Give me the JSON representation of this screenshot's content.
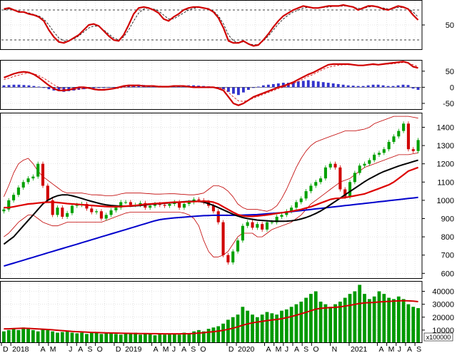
{
  "chart_data": [
    {
      "type": "line",
      "panel": "oscillator",
      "ylim": [
        0,
        100
      ],
      "yticks": [
        "50"
      ],
      "yticks_values": [
        50
      ],
      "reference_levels": [
        80,
        20
      ],
      "series": [
        {
          "values": [
            82,
            84,
            80,
            76,
            76,
            72,
            70,
            66,
            58,
            40,
            26,
            16,
            14,
            18,
            24,
            30,
            40,
            50,
            52,
            48,
            38,
            28,
            20,
            18,
            30,
            50,
            72,
            84,
            86,
            84,
            80,
            74,
            62,
            58,
            66,
            72,
            80,
            84,
            86,
            86,
            84,
            82,
            76,
            64,
            44,
            18,
            14,
            14,
            18,
            12,
            8,
            10,
            20,
            32,
            46,
            58,
            68,
            74,
            80,
            84,
            88,
            86,
            84,
            84,
            86,
            88,
            88,
            88,
            90,
            88,
            86,
            80,
            84,
            88,
            88,
            86,
            82,
            80,
            84,
            88,
            86,
            82,
            70,
            60
          ]
        },
        {
          "values": [
            80,
            82,
            80,
            78,
            76,
            74,
            71,
            68,
            62,
            50,
            36,
            24,
            18,
            18,
            22,
            28,
            36,
            44,
            48,
            47,
            40,
            32,
            24,
            20,
            26,
            40,
            58,
            74,
            82,
            84,
            82,
            78,
            70,
            62,
            62,
            68,
            74,
            80,
            83,
            85,
            84,
            82,
            78,
            68,
            52,
            30,
            18,
            15,
            16,
            13,
            10,
            11,
            18,
            28,
            40,
            52,
            62,
            70,
            76,
            80,
            84,
            85,
            84,
            84,
            85,
            86,
            87,
            87,
            88,
            88,
            86,
            83,
            83,
            86,
            87,
            86,
            84,
            82,
            83,
            85,
            85,
            83,
            76,
            66
          ]
        }
      ]
    },
    {
      "type": "bar",
      "panel": "macd",
      "ylim": [
        -70,
        85
      ],
      "yticks": [
        "50",
        "0",
        "-50"
      ],
      "yticks_values": [
        50,
        0,
        -50
      ],
      "histogram": [
        6,
        7,
        8,
        8,
        7,
        6,
        4,
        2,
        -2,
        -6,
        -10,
        -12,
        -14,
        -12,
        -10,
        -8,
        -6,
        -4,
        -3,
        -2,
        -2,
        -1,
        0,
        2,
        4,
        6,
        7,
        8,
        7,
        6,
        5,
        4,
        4,
        3,
        3,
        4,
        5,
        6,
        6,
        5,
        4,
        3,
        2,
        -1,
        -6,
        -14,
        -20,
        -24,
        -16,
        -8,
        -2,
        2,
        6,
        8,
        10,
        12,
        14,
        14,
        16,
        18,
        20,
        22,
        20,
        18,
        16,
        14,
        12,
        10,
        8,
        6,
        5,
        4,
        4,
        6,
        8,
        8,
        6,
        4,
        4,
        6,
        8,
        7,
        -4,
        -8
      ],
      "series": [
        {
          "values": [
            30,
            36,
            42,
            46,
            48,
            46,
            40,
            30,
            18,
            6,
            -4,
            -10,
            -10,
            -8,
            -4,
            0,
            0,
            -2,
            -6,
            -8,
            -8,
            -6,
            -4,
            0,
            4,
            6,
            6,
            6,
            4,
            4,
            4,
            2,
            2,
            2,
            4,
            4,
            4,
            2,
            0,
            0,
            0,
            0,
            0,
            -4,
            -10,
            -30,
            -50,
            -56,
            -50,
            -40,
            -30,
            -24,
            -18,
            -12,
            -6,
            0,
            4,
            10,
            16,
            24,
            32,
            40,
            46,
            54,
            62,
            70,
            72,
            72,
            72,
            72,
            70,
            68,
            68,
            70,
            72,
            70,
            72,
            74,
            76,
            78,
            80,
            76,
            64,
            60
          ]
        },
        {
          "values": [
            24,
            28,
            34,
            38,
            42,
            44,
            42,
            36,
            28,
            18,
            8,
            0,
            -6,
            -8,
            -8,
            -6,
            -4,
            -4,
            -4,
            -6,
            -6,
            -6,
            -5,
            -3,
            0,
            2,
            3,
            4,
            4,
            4,
            4,
            4,
            3,
            3,
            3,
            3,
            3,
            3,
            2,
            2,
            1,
            1,
            1,
            -1,
            -5,
            -16,
            -30,
            -42,
            -44,
            -40,
            -34,
            -28,
            -22,
            -16,
            -10,
            -4,
            0,
            6,
            12,
            18,
            26,
            34,
            40,
            48,
            56,
            62,
            66,
            68,
            70,
            70,
            70,
            68,
            68,
            69,
            70,
            70,
            71,
            72,
            73,
            75,
            77,
            76,
            70,
            64
          ]
        }
      ]
    },
    {
      "type": "candlestick",
      "panel": "price",
      "ylim": [
        570,
        1480
      ],
      "yticks": [
        "1400",
        "1300",
        "1200",
        "1100",
        "1000",
        "900",
        "800",
        "700",
        "600"
      ],
      "yticks_values": [
        1400,
        1300,
        1200,
        1100,
        1000,
        900,
        800,
        700,
        600
      ],
      "close": [
        950,
        1000,
        1030,
        1070,
        1100,
        1120,
        1130,
        1200,
        1080,
        1000,
        920,
        960,
        910,
        930,
        970,
        975,
        980,
        955,
        935,
        940,
        900,
        920,
        945,
        960,
        990,
        990,
        975,
        975,
        985,
        960,
        970,
        980,
        975,
        970,
        980,
        990,
        960,
        980,
        990,
        1005,
        1000,
        990,
        970,
        940,
        880,
        700,
        660,
        720,
        780,
        860,
        880,
        850,
        870,
        840,
        880,
        880,
        910,
        920,
        940,
        960,
        990,
        1010,
        1050,
        1080,
        1100,
        1120,
        1180,
        1200,
        1180,
        1060,
        1020,
        1100,
        1150,
        1190,
        1200,
        1220,
        1250,
        1260,
        1280,
        1320,
        1350,
        1380,
        1420,
        1280,
        1270,
        1330
      ],
      "ma_red": [
        960,
        960,
        965,
        970,
        975,
        980,
        982,
        985,
        988,
        990,
        990,
        988,
        985,
        982,
        980,
        978,
        976,
        974,
        972,
        970,
        968,
        966,
        965,
        965,
        966,
        968,
        970,
        972,
        975,
        978,
        980,
        982,
        984,
        986,
        988,
        990,
        990,
        991,
        992,
        993,
        994,
        995,
        994,
        990,
        980,
        965,
        950,
        935,
        922,
        915,
        912,
        912,
        914,
        917,
        920,
        924,
        928,
        932,
        936,
        940,
        945,
        950,
        958,
        965,
        975,
        985,
        995,
        1005,
        1010,
        1012,
        1015,
        1020,
        1025,
        1030,
        1035,
        1045,
        1055,
        1065,
        1075,
        1085,
        1100,
        1120,
        1140,
        1160,
        1170,
        1180
      ],
      "ma_black": [
        760,
        780,
        800,
        830,
        860,
        890,
        920,
        950,
        980,
        1000,
        1015,
        1025,
        1030,
        1030,
        1025,
        1018,
        1010,
        1002,
        994,
        987,
        980,
        975,
        972,
        970,
        968,
        968,
        968,
        970,
        972,
        975,
        978,
        980,
        982,
        984,
        986,
        988,
        990,
        992,
        994,
        995,
        994,
        990,
        982,
        972,
        960,
        948,
        936,
        924,
        914,
        906,
        900,
        896,
        892,
        890,
        888,
        886,
        885,
        885,
        886,
        888,
        892,
        898,
        906,
        916,
        928,
        942,
        958,
        976,
        994,
        1012,
        1030,
        1048,
        1066,
        1084,
        1102,
        1118,
        1132,
        1146,
        1158,
        1168,
        1178,
        1188,
        1196,
        1204,
        1212,
        1220
      ],
      "ma_blue": [
        640,
        648,
        656,
        664,
        672,
        680,
        688,
        696,
        704,
        712,
        720,
        728,
        736,
        744,
        752,
        760,
        768,
        776,
        784,
        792,
        800,
        808,
        816,
        824,
        832,
        840,
        848,
        856,
        864,
        872,
        880,
        888,
        894,
        898,
        901,
        904,
        906,
        908,
        910,
        912,
        914,
        916,
        917,
        918,
        918,
        918,
        918,
        918,
        918,
        919,
        920,
        921,
        922,
        924,
        926,
        928,
        930,
        932,
        935,
        938,
        941,
        944,
        947,
        950,
        953,
        956,
        959,
        962,
        965,
        968,
        971,
        974,
        977,
        980,
        983,
        986,
        989,
        992,
        995,
        998,
        1001,
        1004,
        1007,
        1010,
        1013,
        1016
      ],
      "bb_upper": [
        1020,
        1080,
        1150,
        1200,
        1220,
        1230,
        1200,
        1160,
        1130,
        1110,
        1090,
        1070,
        1050,
        1040,
        1040,
        1040,
        1040,
        1035,
        1030,
        1030,
        1028,
        1025,
        1025,
        1028,
        1035,
        1040,
        1040,
        1040,
        1040,
        1038,
        1036,
        1034,
        1034,
        1035,
        1036,
        1036,
        1034,
        1032,
        1030,
        1030,
        1034,
        1040,
        1060,
        1080,
        1080,
        1070,
        1050,
        1020,
        980,
        960,
        950,
        950,
        950,
        945,
        940,
        950,
        970,
        1010,
        1060,
        1120,
        1180,
        1230,
        1270,
        1300,
        1320,
        1330,
        1340,
        1350,
        1360,
        1370,
        1380,
        1380,
        1380,
        1385,
        1390,
        1400,
        1420,
        1430,
        1440,
        1450,
        1460,
        1460,
        1460,
        1460,
        1455,
        1450
      ],
      "bb_lower": [
        800,
        820,
        850,
        880,
        900,
        920,
        920,
        900,
        880,
        870,
        860,
        860,
        870,
        880,
        880,
        880,
        880,
        880,
        880,
        880,
        880,
        890,
        900,
        910,
        920,
        930,
        935,
        935,
        935,
        935,
        935,
        935,
        935,
        935,
        935,
        935,
        935,
        930,
        920,
        900,
        860,
        780,
        720,
        690,
        690,
        700,
        720,
        760,
        800,
        820,
        820,
        820,
        800,
        800,
        820,
        840,
        850,
        860,
        870,
        880,
        900,
        920,
        950,
        980,
        1000,
        1020,
        1040,
        1060,
        1080,
        1100,
        1110,
        1120,
        1140,
        1160,
        1180,
        1190,
        1200,
        1210,
        1220,
        1230,
        1240,
        1250,
        1250,
        1250,
        1255,
        1260
      ]
    },
    {
      "type": "bar",
      "panel": "volume",
      "ylim": [
        0,
        48000
      ],
      "yticks": [
        "40000",
        "30000",
        "20000",
        "10000"
      ],
      "yticks_values": [
        40000,
        30000,
        20000,
        10000
      ],
      "unit": "x100000",
      "values": [
        9000,
        10000,
        11000,
        10000,
        12000,
        11000,
        10000,
        9000,
        11000,
        10000,
        9000,
        8000,
        8500,
        9000,
        8000,
        7500,
        8000,
        7000,
        8000,
        8500,
        7000,
        7500,
        8000,
        7000,
        6500,
        7500,
        7000,
        8000,
        6500,
        7000,
        7500,
        6000,
        7000,
        6500,
        7500,
        7000,
        6500,
        8000,
        7500,
        9000,
        10000,
        9000,
        11000,
        12000,
        13000,
        15000,
        18000,
        20000,
        22000,
        28000,
        25000,
        22000,
        20000,
        22000,
        24000,
        23000,
        22000,
        25000,
        26000,
        28000,
        30000,
        32000,
        35000,
        38000,
        40000,
        32000,
        30000,
        28000,
        30000,
        32000,
        35000,
        38000,
        40000,
        45000,
        38000,
        34000,
        36000,
        40000,
        38000,
        35000,
        34000,
        36000,
        34000,
        30000,
        28000,
        27000
      ],
      "ma_values": [
        11000,
        11000,
        11200,
        11300,
        11400,
        11300,
        11100,
        10900,
        10700,
        10500,
        10200,
        9900,
        9600,
        9300,
        9000,
        8800,
        8600,
        8400,
        8200,
        8100,
        8000,
        7900,
        7800,
        7700,
        7600,
        7500,
        7450,
        7400,
        7350,
        7300,
        7250,
        7200,
        7150,
        7100,
        7100,
        7100,
        7100,
        7150,
        7200,
        7400,
        7700,
        8000,
        8400,
        8800,
        9200,
        9800,
        10600,
        11500,
        12500,
        13800,
        14800,
        15600,
        16200,
        16800,
        17400,
        17800,
        18200,
        18800,
        19600,
        20500,
        21500,
        22600,
        23800,
        25000,
        26200,
        26800,
        27200,
        27400,
        27600,
        28000,
        28600,
        29200,
        29900,
        30600,
        31000,
        31200,
        31400,
        31800,
        32000,
        32200,
        32400,
        32600,
        32800,
        32600,
        32400,
        32000
      ]
    }
  ],
  "x_axis": {
    "labels": [
      "D",
      "2018",
      "A",
      "M",
      "J",
      "A",
      "S",
      "O",
      "D",
      "2019",
      "A",
      "M",
      "J",
      "A",
      "S",
      "O",
      "D",
      "2020",
      "A",
      "M",
      "J",
      "A",
      "S",
      "O",
      "N",
      "2021",
      "A",
      "M",
      "J",
      "A",
      "S"
    ],
    "label_month_index": [
      0,
      1,
      4,
      5,
      7,
      8,
      9,
      10,
      12,
      13,
      16,
      17,
      18,
      19,
      20,
      21,
      24,
      25,
      28,
      29,
      30,
      31,
      32,
      33,
      35,
      37,
      40,
      41,
      42,
      43,
      44
    ],
    "months_span": [
      0,
      44.6
    ]
  },
  "colors": {
    "up": "#00a000",
    "down": "#d00000",
    "ma_red": "#dd0000",
    "ma_black": "#000000",
    "ma_blue": "#0000cc",
    "bollinger": "#c00000",
    "histogram": "#3333cc",
    "volume": "#009900",
    "osc_dash": "#000000",
    "grid": "#c8c8c8"
  }
}
